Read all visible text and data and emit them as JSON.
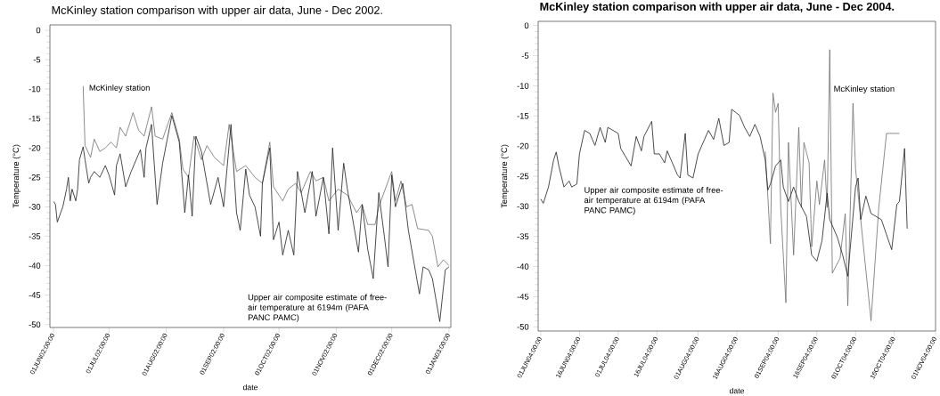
{
  "chart_data": [
    {
      "type": "line",
      "title": "McKinley station comparison with upper air data, June - Dec 2002.",
      "xlabel": "date",
      "ylabel": "Temperature (°C)",
      "xlim": [
        "2002-05-30",
        "2003-01-02"
      ],
      "ylim": [
        -50.5,
        0.9
      ],
      "yticks": [
        0,
        -5,
        -10,
        -15,
        -20,
        -25,
        -30,
        -35,
        -40,
        -45,
        -50
      ],
      "xticks": [
        {
          "value": "2002-06-01",
          "label": "01JUN02:00:00"
        },
        {
          "value": "2002-07-01",
          "label": "01JUL02:00:00"
        },
        {
          "value": "2002-08-01",
          "label": "01AUG02:00:00"
        },
        {
          "value": "2002-09-01",
          "label": "01SEP02:00:00"
        },
        {
          "value": "2002-10-01",
          "label": "01OCT02:00:00"
        },
        {
          "value": "2002-11-01",
          "label": "01NOV02:00:00"
        },
        {
          "value": "2002-12-01",
          "label": "01DEC02:00:00"
        },
        {
          "value": "2003-01-01",
          "label": "01JAN03:00:00"
        }
      ],
      "series": [
        {
          "name": "McKinley station",
          "color": "#6e6e6e",
          "x": [
            "2002-06-17",
            "2002-06-18",
            "2002-06-21",
            "2002-06-23",
            "2002-06-26",
            "2002-06-29",
            "2002-07-02",
            "2002-07-05",
            "2002-07-07",
            "2002-07-10",
            "2002-07-14",
            "2002-07-17",
            "2002-07-20",
            "2002-07-24",
            "2002-07-26",
            "2002-07-30",
            "2002-08-04",
            "2002-08-08",
            "2002-08-10",
            "2002-08-13",
            "2002-08-16",
            "2002-08-20",
            "2002-08-23",
            "2002-08-27",
            "2002-09-01",
            "2002-09-04",
            "2002-09-08",
            "2002-09-13",
            "2002-09-18",
            "2002-09-22",
            "2002-09-26",
            "2002-09-28",
            "2002-10-03",
            "2002-10-06",
            "2002-10-10",
            "2002-10-13",
            "2002-10-18",
            "2002-10-21",
            "2002-10-25",
            "2002-10-28",
            "2002-11-02",
            "2002-11-07",
            "2002-11-12",
            "2002-11-15",
            "2002-11-18",
            "2002-11-22",
            "2002-11-24",
            "2002-12-01",
            "2002-12-03",
            "2002-12-06",
            "2002-12-09",
            "2002-12-12",
            "2002-12-15",
            "2002-12-21",
            "2002-12-23",
            "2002-12-26",
            "2002-12-29",
            "2003-01-01"
          ],
          "values": [
            -9.5,
            -19.6,
            -21.6,
            -18.5,
            -20.6,
            -20,
            -19,
            -20,
            -16.5,
            -18,
            -14,
            -17,
            -18,
            -13,
            -18,
            -18.5,
            -14,
            -18.5,
            -23.6,
            -25,
            -18,
            -22,
            -19.6,
            -21.6,
            -23,
            -16,
            -24,
            -23,
            -25,
            -26,
            -19,
            -26.6,
            -29,
            -27,
            -26,
            -27.6,
            -24,
            -25.6,
            -25,
            -29,
            -27,
            -28,
            -31,
            -29.6,
            -33,
            -33,
            -30,
            -24,
            -29,
            -25.6,
            -30,
            -29.6,
            -33.7,
            -34,
            -35,
            -40.2,
            -39,
            -40
          ]
        },
        {
          "name": "Upper air composite estimate of free-air temperature at  6194m (PAFA PANC PAMC)",
          "color": "#1e1e1e",
          "x": [
            "2002-06-01",
            "2002-06-02",
            "2002-06-03",
            "2002-06-06",
            "2002-06-08",
            "2002-06-09",
            "2002-06-10",
            "2002-06-11",
            "2002-06-13",
            "2002-06-14",
            "2002-06-15",
            "2002-06-17",
            "2002-06-18",
            "2002-06-20",
            "2002-06-21",
            "2002-06-23",
            "2002-06-26",
            "2002-06-29",
            "2002-07-01",
            "2002-07-04",
            "2002-07-05",
            "2002-07-07",
            "2002-07-10",
            "2002-07-13",
            "2002-07-18",
            "2002-07-20",
            "2002-07-21",
            "2002-07-24",
            "2002-07-27",
            "2002-07-30",
            "2002-08-04",
            "2002-08-08",
            "2002-08-11",
            "2002-08-13",
            "2002-08-15",
            "2002-08-17",
            "2002-08-20",
            "2002-08-23",
            "2002-08-25",
            "2002-08-29",
            "2002-09-01",
            "2002-09-05",
            "2002-09-08",
            "2002-09-10",
            "2002-09-13",
            "2002-09-15",
            "2002-09-18",
            "2002-09-21",
            "2002-09-22",
            "2002-09-26",
            "2002-09-28",
            "2002-10-01",
            "2002-10-03",
            "2002-10-06",
            "2002-10-09",
            "2002-10-11",
            "2002-10-15",
            "2002-10-19",
            "2002-10-21",
            "2002-10-25",
            "2002-10-28",
            "2002-10-30",
            "2002-11-02",
            "2002-11-05",
            "2002-11-07",
            "2002-11-13",
            "2002-11-15",
            "2002-11-18",
            "2002-11-21",
            "2002-11-24",
            "2002-11-27",
            "2002-11-29",
            "2002-12-01",
            "2002-12-03",
            "2002-12-07",
            "2002-12-10",
            "2002-12-16",
            "2002-12-18",
            "2002-12-21",
            "2002-12-23",
            "2002-12-27",
            "2002-12-30",
            "2003-01-01"
          ],
          "values": [
            -29.1,
            -29.6,
            -32.6,
            -30,
            -27,
            -25,
            -29,
            -27,
            -29,
            -27,
            -22,
            -19.8,
            -22,
            -26,
            -25,
            -24,
            -25,
            -23,
            -24.6,
            -28,
            -23,
            -21,
            -26.6,
            -24,
            -20.3,
            -25,
            -20,
            -16,
            -29.6,
            -22.6,
            -14.5,
            -19,
            -31,
            -24.6,
            -31.6,
            -18,
            -20.6,
            -26,
            -29.6,
            -25,
            -30,
            -16,
            -31,
            -34,
            -23.6,
            -28,
            -30,
            -35,
            -26,
            -20,
            -35.6,
            -32.6,
            -38.2,
            -34,
            -38.2,
            -24,
            -31,
            -24,
            -31.6,
            -25,
            -34.6,
            -20,
            -34,
            -22.6,
            -27,
            -37.7,
            -29.6,
            -37.2,
            -42.2,
            -27.6,
            -35,
            -40.2,
            -24.6,
            -30,
            -26,
            -34,
            -44.8,
            -40.2,
            -40.7,
            -42.2,
            -49.5,
            -40.7,
            -40.2
          ]
        }
      ]
    },
    {
      "type": "line",
      "title": "McKinley station comparison with upper air data, June - Dec 2004.",
      "xlabel": "date",
      "ylabel": "Temperature (°C)",
      "xlim": [
        "2004-05-31",
        "2004-11-01"
      ],
      "ylim": [
        -50.7,
        0.7
      ],
      "yticks": [
        0,
        -5,
        -10,
        -15,
        -20,
        -25,
        -30,
        -35,
        -40,
        -45,
        -50
      ],
      "xticks": [
        {
          "value": "2004-06-01",
          "label": "01JUN04:00:00"
        },
        {
          "value": "2004-06-16",
          "label": "16JUN04:00:00"
        },
        {
          "value": "2004-07-01",
          "label": "01JUL04:00:00"
        },
        {
          "value": "2004-07-16",
          "label": "16JUL04:00:00"
        },
        {
          "value": "2004-08-01",
          "label": "01AUG04:00:00"
        },
        {
          "value": "2004-08-16",
          "label": "16AUG04:00:00"
        },
        {
          "value": "2004-09-01",
          "label": "01SEP04:00:00"
        },
        {
          "value": "2004-09-16",
          "label": "16SEP04:00:00"
        },
        {
          "value": "2004-10-01",
          "label": "01OCT04:00:00"
        },
        {
          "value": "2004-10-16",
          "label": "16OCT04:00:00"
        },
        {
          "value": "2004-11-01",
          "label": "01NOV04:00:00"
        }
      ],
      "series": [
        {
          "name": "McKinley station",
          "color": "#6e6e6e",
          "x": [
            "2004-08-27",
            "2004-08-28",
            "2004-08-29",
            "2004-08-30",
            "2004-08-31",
            "2004-09-01",
            "2004-09-02",
            "2004-09-04",
            "2004-09-05",
            "2004-09-07",
            "2004-09-09",
            "2004-09-10",
            "2004-09-11",
            "2004-09-13",
            "2004-09-14",
            "2004-09-16",
            "2004-09-17",
            "2004-09-19",
            "2004-09-20",
            "2004-09-21",
            "2004-09-22",
            "2004-09-25",
            "2004-09-27",
            "2004-09-28",
            "2004-09-30",
            "2004-10-01",
            "2004-10-07",
            "2004-10-10",
            "2004-10-13",
            "2004-10-18"
          ],
          "values": [
            -20.9,
            -28.3,
            -36.2,
            -11.2,
            -14.4,
            -12.9,
            -30.2,
            -46,
            -19.4,
            -38.1,
            -16.9,
            -30.2,
            -19.4,
            -22.8,
            -36.7,
            -25.8,
            -29.7,
            -22.3,
            -30.2,
            -4,
            -41.1,
            -38.6,
            -31.2,
            -46.5,
            -12.9,
            -23.8,
            -49,
            -30.2,
            -17.9,
            -17.9
          ]
        },
        {
          "name": "Upper air composite estimate of free-air temperature at  6194m (PAFA PANC PAMC)",
          "color": "#1e1e1e",
          "x": [
            "2004-06-01",
            "2004-06-02",
            "2004-06-04",
            "2004-06-06",
            "2004-06-07",
            "2004-06-08",
            "2004-06-10",
            "2004-06-12",
            "2004-06-13",
            "2004-06-15",
            "2004-06-16",
            "2004-06-18",
            "2004-06-20",
            "2004-06-22",
            "2004-06-24",
            "2004-06-26",
            "2004-06-27",
            "2004-07-01",
            "2004-07-02",
            "2004-07-06",
            "2004-07-08",
            "2004-07-10",
            "2004-07-11",
            "2004-07-14",
            "2004-07-15",
            "2004-07-17",
            "2004-07-19",
            "2004-07-20",
            "2004-07-24",
            "2004-07-25",
            "2004-07-27",
            "2004-07-28",
            "2004-07-30",
            "2004-08-01",
            "2004-08-05",
            "2004-08-07",
            "2004-08-09",
            "2004-08-11",
            "2004-08-13",
            "2004-08-14",
            "2004-08-17",
            "2004-08-19",
            "2004-08-21",
            "2004-08-23",
            "2004-08-25",
            "2004-08-27",
            "2004-08-28",
            "2004-08-29",
            "2004-08-31",
            "2004-09-02",
            "2004-09-03",
            "2004-09-05",
            "2004-09-07",
            "2004-09-09",
            "2004-09-12",
            "2004-09-14",
            "2004-09-16",
            "2004-09-18",
            "2004-09-20",
            "2004-09-21",
            "2004-09-24",
            "2004-09-26",
            "2004-09-28",
            "2004-10-01",
            "2004-10-02",
            "2004-10-03",
            "2004-10-05",
            "2004-10-07",
            "2004-10-11",
            "2004-10-13",
            "2004-10-15",
            "2004-10-17",
            "2004-10-18",
            "2004-10-20",
            "2004-10-21"
          ],
          "values": [
            -28.8,
            -29.5,
            -26.8,
            -22.3,
            -21,
            -23.3,
            -26.8,
            -25.8,
            -26.8,
            -26.3,
            -21.3,
            -17.4,
            -17.9,
            -19.9,
            -16.9,
            -19.4,
            -16.9,
            -17.9,
            -20.4,
            -23.3,
            -18.4,
            -20.8,
            -18.4,
            -15.9,
            -21.3,
            -21.3,
            -22.8,
            -20.8,
            -24.8,
            -25.3,
            -17.9,
            -24.8,
            -25.3,
            -21.3,
            -17.4,
            -18.9,
            -15.4,
            -19.9,
            -19.4,
            -13.9,
            -14.9,
            -16.9,
            -18.4,
            -16.4,
            -18.4,
            -22.3,
            -27.3,
            -26.3,
            -23.3,
            -22.3,
            -26.8,
            -29.2,
            -26.8,
            -29.2,
            -31.7,
            -38.1,
            -39.1,
            -35.7,
            -27.8,
            -32.2,
            -35.2,
            -38.1,
            -41.6,
            -26.8,
            -25.3,
            -32.2,
            -28.3,
            -31.2,
            -32.2,
            -34.7,
            -37.2,
            -29.7,
            -29.2,
            -20.4,
            -33.7
          ]
        }
      ]
    }
  ]
}
